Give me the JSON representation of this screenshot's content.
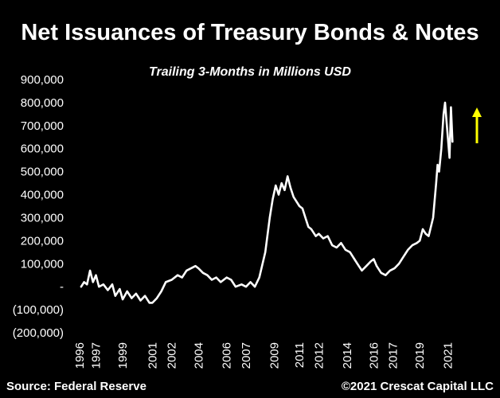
{
  "chart_data": {
    "type": "line",
    "title": "Net Issuances of Treasury Bonds & Notes",
    "subtitle": "Trailing 3-Months in Millions USD",
    "source": "Source: Federal Reserve",
    "copyright": "©2021 Crescat Capital LLC",
    "ylim": [
      -200000,
      900000
    ],
    "yticks": [
      {
        "value": 900000,
        "label": "900,000"
      },
      {
        "value": 800000,
        "label": "800,000"
      },
      {
        "value": 700000,
        "label": "700,000"
      },
      {
        "value": 600000,
        "label": "600,000"
      },
      {
        "value": 500000,
        "label": "500,000"
      },
      {
        "value": 400000,
        "label": "400,000"
      },
      {
        "value": 300000,
        "label": "300,000"
      },
      {
        "value": 200000,
        "label": "200,000"
      },
      {
        "value": 100000,
        "label": "100,000"
      },
      {
        "value": 0,
        "label": "-"
      },
      {
        "value": -100000,
        "label": "(100,000)"
      },
      {
        "value": -200000,
        "label": "(200,000)"
      }
    ],
    "xlim": [
      1996,
      2022.8
    ],
    "xticks": [
      {
        "value": 1996.0,
        "label": "1996"
      },
      {
        "value": 1997.1,
        "label": "1997"
      },
      {
        "value": 1998.9,
        "label": "1999"
      },
      {
        "value": 2000.9,
        "label": "2001"
      },
      {
        "value": 2002.2,
        "label": "2002"
      },
      {
        "value": 2004.0,
        "label": "2004"
      },
      {
        "value": 2005.9,
        "label": "2006"
      },
      {
        "value": 2007.2,
        "label": "2007"
      },
      {
        "value": 2009.1,
        "label": "2009"
      },
      {
        "value": 2010.8,
        "label": "2011"
      },
      {
        "value": 2012.1,
        "label": "2012"
      },
      {
        "value": 2014.0,
        "label": "2014"
      },
      {
        "value": 2015.8,
        "label": "2016"
      },
      {
        "value": 2017.1,
        "label": "2017"
      },
      {
        "value": 2018.9,
        "label": "2019"
      },
      {
        "value": 2020.8,
        "label": "2021"
      }
    ],
    "grid": false,
    "series": [
      {
        "color": "#ffffff",
        "points": [
          [
            1996.1,
            0
          ],
          [
            1996.3,
            20000
          ],
          [
            1996.5,
            10000
          ],
          [
            1996.7,
            70000
          ],
          [
            1996.9,
            20000
          ],
          [
            1997.1,
            50000
          ],
          [
            1997.3,
            0
          ],
          [
            1997.6,
            10000
          ],
          [
            1997.9,
            -15000
          ],
          [
            1998.2,
            10000
          ],
          [
            1998.4,
            -40000
          ],
          [
            1998.7,
            -10000
          ],
          [
            1998.9,
            -55000
          ],
          [
            1999.2,
            -20000
          ],
          [
            1999.5,
            -50000
          ],
          [
            1999.8,
            -30000
          ],
          [
            2000.1,
            -60000
          ],
          [
            2000.4,
            -40000
          ],
          [
            2000.7,
            -70000
          ],
          [
            2000.9,
            -70000
          ],
          [
            2001.2,
            -50000
          ],
          [
            2001.5,
            -20000
          ],
          [
            2001.8,
            20000
          ],
          [
            2002.2,
            30000
          ],
          [
            2002.6,
            50000
          ],
          [
            2002.9,
            40000
          ],
          [
            2003.2,
            70000
          ],
          [
            2003.5,
            80000
          ],
          [
            2003.8,
            90000
          ],
          [
            2004.0,
            80000
          ],
          [
            2004.3,
            60000
          ],
          [
            2004.6,
            50000
          ],
          [
            2004.9,
            30000
          ],
          [
            2005.2,
            40000
          ],
          [
            2005.5,
            20000
          ],
          [
            2005.9,
            40000
          ],
          [
            2006.2,
            30000
          ],
          [
            2006.5,
            0
          ],
          [
            2006.9,
            10000
          ],
          [
            2007.2,
            0
          ],
          [
            2007.5,
            20000
          ],
          [
            2007.8,
            0
          ],
          [
            2008.1,
            40000
          ],
          [
            2008.5,
            150000
          ],
          [
            2008.8,
            300000
          ],
          [
            2009.0,
            380000
          ],
          [
            2009.2,
            440000
          ],
          [
            2009.4,
            400000
          ],
          [
            2009.6,
            450000
          ],
          [
            2009.8,
            420000
          ],
          [
            2010.0,
            480000
          ],
          [
            2010.2,
            430000
          ],
          [
            2010.4,
            390000
          ],
          [
            2010.6,
            370000
          ],
          [
            2010.8,
            350000
          ],
          [
            2011.0,
            340000
          ],
          [
            2011.2,
            300000
          ],
          [
            2011.4,
            260000
          ],
          [
            2011.6,
            250000
          ],
          [
            2011.9,
            220000
          ],
          [
            2012.1,
            230000
          ],
          [
            2012.4,
            210000
          ],
          [
            2012.7,
            220000
          ],
          [
            2013.0,
            180000
          ],
          [
            2013.3,
            170000
          ],
          [
            2013.6,
            190000
          ],
          [
            2013.9,
            160000
          ],
          [
            2014.2,
            150000
          ],
          [
            2014.5,
            120000
          ],
          [
            2014.8,
            90000
          ],
          [
            2015.0,
            70000
          ],
          [
            2015.3,
            90000
          ],
          [
            2015.6,
            110000
          ],
          [
            2015.8,
            120000
          ],
          [
            2016.0,
            90000
          ],
          [
            2016.3,
            60000
          ],
          [
            2016.6,
            50000
          ],
          [
            2016.9,
            70000
          ],
          [
            2017.2,
            80000
          ],
          [
            2017.5,
            100000
          ],
          [
            2017.8,
            130000
          ],
          [
            2018.1,
            160000
          ],
          [
            2018.4,
            180000
          ],
          [
            2018.7,
            190000
          ],
          [
            2018.9,
            200000
          ],
          [
            2019.1,
            250000
          ],
          [
            2019.3,
            230000
          ],
          [
            2019.5,
            220000
          ],
          [
            2019.8,
            300000
          ],
          [
            2020.0,
            450000
          ],
          [
            2020.1,
            530000
          ],
          [
            2020.2,
            500000
          ],
          [
            2020.35,
            600000
          ],
          [
            2020.5,
            750000
          ],
          [
            2020.6,
            800000
          ],
          [
            2020.7,
            720000
          ],
          [
            2020.8,
            640000
          ],
          [
            2020.9,
            560000
          ],
          [
            2021.0,
            780000
          ],
          [
            2021.1,
            630000
          ]
        ]
      }
    ],
    "annotations": [
      {
        "type": "arrow",
        "direction": "up",
        "color": "#ffff00"
      }
    ]
  }
}
